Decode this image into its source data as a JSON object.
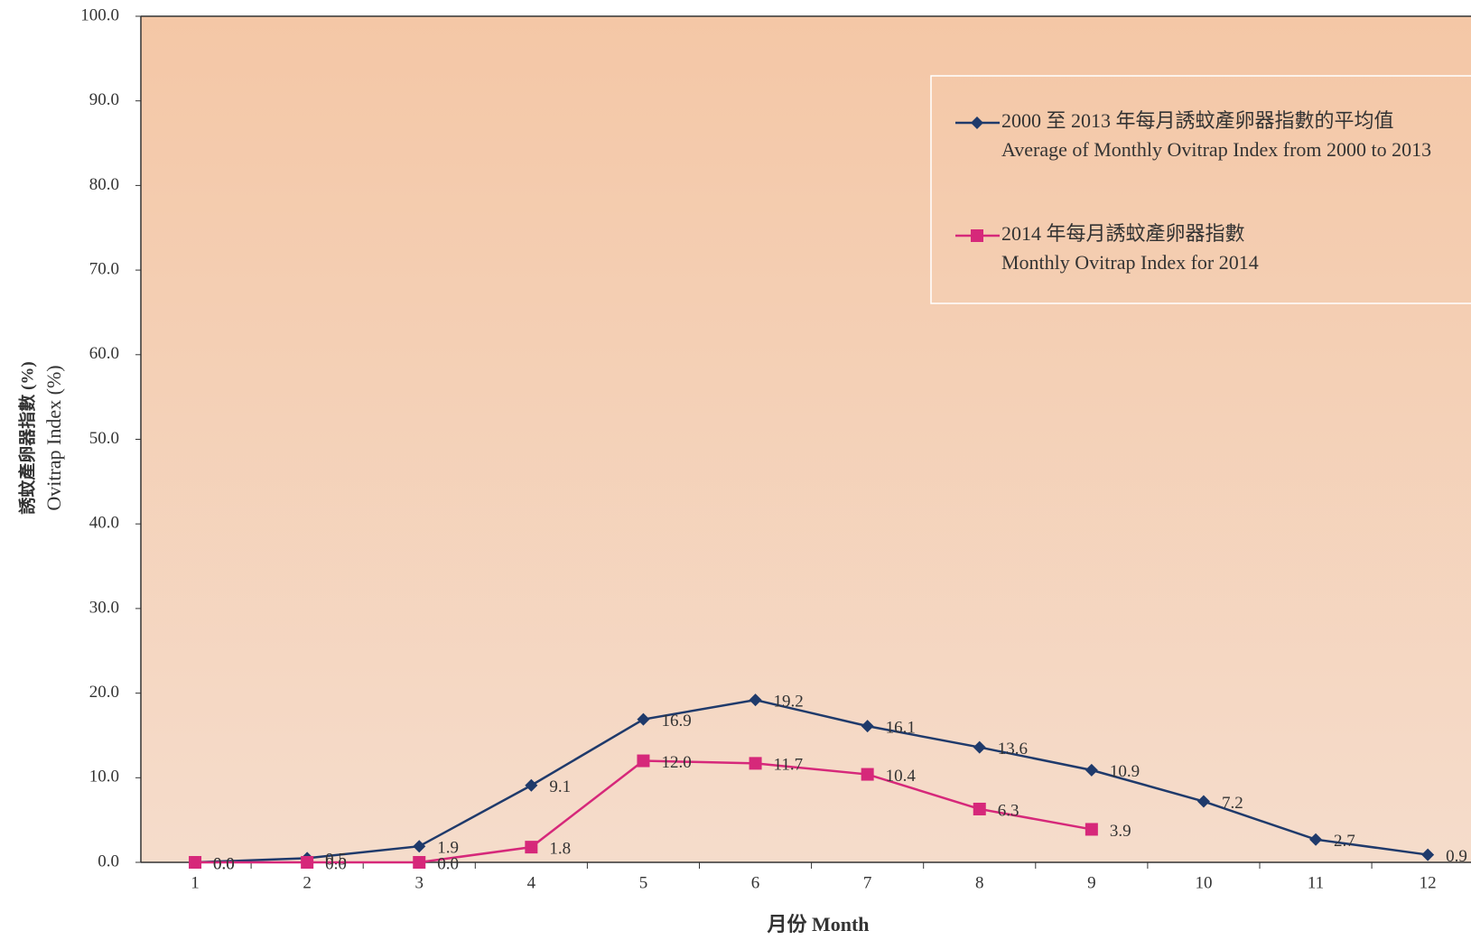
{
  "chart_data": {
    "type": "line",
    "y_label": [
      "誘蚊產卵器指數 (%)",
      "Ovitrap Index (%)"
    ],
    "x_label": "月份 Month",
    "categories": [
      "1",
      "2",
      "3",
      "4",
      "5",
      "6",
      "7",
      "8",
      "9",
      "10",
      "11",
      "12"
    ],
    "series": [
      {
        "name": "2000 至 2013 年每月誘蚊產卵器指數的平均值",
        "name_en": "Average of Monthly Ovitrap Index from 2000 to 2013",
        "color": "#1f3a6b",
        "marker": "diamond",
        "values": [
          0,
          0.5,
          1.9,
          9.1,
          16.9,
          19.2,
          16.1,
          13.6,
          10.9,
          7.2,
          2.7,
          0.9
        ],
        "value_labels": [
          "0.0",
          "0.5",
          "1.9",
          "9.1",
          "16.9",
          "19.2",
          "16.1",
          "13.6",
          "10.9",
          "7.2",
          "2.7",
          "0.9"
        ]
      },
      {
        "name": "2014 年每月誘蚊產卵器指數",
        "name_en": "Monthly Ovitrap Index for 2014",
        "color": "#d6287a",
        "marker": "square",
        "values": [
          0,
          0,
          0,
          1.8,
          12,
          11.7,
          10.4,
          6.3,
          3.9,
          null,
          null,
          null
        ],
        "value_labels": [
          "0.0",
          "0.0",
          "0.0",
          "1.8",
          "12.0",
          "11.7",
          "10.4",
          "6.3",
          "3.9",
          null,
          null,
          null
        ]
      }
    ],
    "ylim": [
      0,
      100
    ],
    "yticks": [
      {
        "value": 0,
        "label": "0.0"
      },
      {
        "value": 10,
        "label": "10.0"
      },
      {
        "value": 20,
        "label": "20.0"
      },
      {
        "value": 30,
        "label": "30.0"
      },
      {
        "value": 40,
        "label": "40.0"
      },
      {
        "value": 50,
        "label": "50.0"
      },
      {
        "value": 60,
        "label": "60.0"
      },
      {
        "value": 70,
        "label": "70.0"
      },
      {
        "value": 80,
        "label": "80.0"
      },
      {
        "value": 90,
        "label": "90.0"
      },
      {
        "value": 100,
        "label": "100.0"
      }
    ]
  }
}
